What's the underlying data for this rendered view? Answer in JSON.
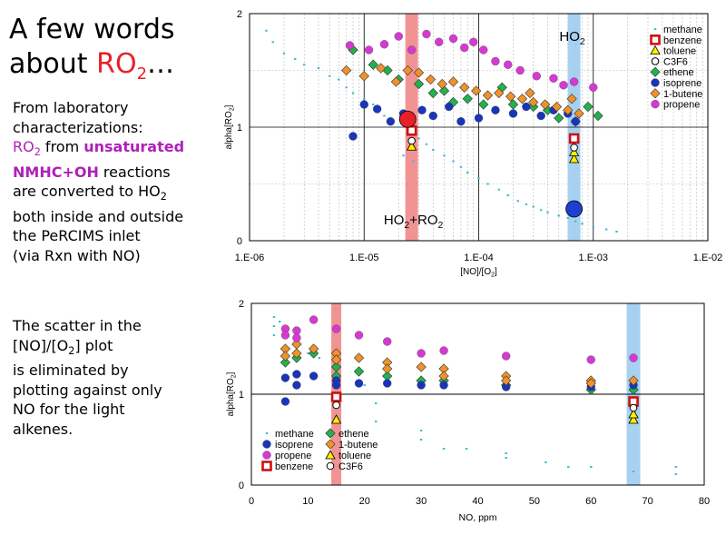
{
  "left_text": {
    "title_line1": "A few words",
    "title_line2_prefix": "about ",
    "title_ro": "RO",
    "title_sub": "2",
    "title_suffix": "…",
    "p1_line1": "From laboratory",
    "p1_line2": "characterizations:",
    "p1_ro": "RO",
    "p1_ro_sub": "2",
    "p1_from": " from ",
    "p1_unsat": "unsaturated",
    "p1_nmhc": "NMHC+OH",
    "p1_reactions": " reactions",
    "p1_conv": "are converted to HO",
    "p1_conv_sub": "2",
    "p1_line6": "both inside and outside",
    "p1_line7": "the PeRCIMS inlet",
    "p1_line8": "(via  Rxn with NO)",
    "p2_line1": "The scatter in the",
    "p2_line2a": "[NO]/[O",
    "p2_line2sub": "2",
    "p2_line2b": "] plot",
    "p2_line3": "is eliminated by",
    "p2_line4": "plotting against only",
    "p2_line5": "NO for the light",
    "p2_line6": "alkenes."
  },
  "chart_data": [
    {
      "type": "scatter",
      "xlabel": "[NO]/[O2]",
      "ylabel": "alpha[RO2]",
      "xscale": "log",
      "xlim": [
        1e-06,
        0.01
      ],
      "ylim": [
        0,
        2
      ],
      "x_tick_labels": [
        "1.E-06",
        "1.E-05",
        "1.E-04",
        "1.E-03",
        "1.E-02"
      ],
      "y_tick_labels": [
        "0",
        "1",
        "2"
      ],
      "grid": "minor dashed, major solid",
      "legend_position": "right",
      "bands": [
        {
          "label": "HO2+RO2",
          "x": 2.6e-05,
          "color": "#f08080"
        },
        {
          "label": "HO2",
          "x": 0.00068,
          "color": "#99c9ef"
        }
      ],
      "marker_points": [
        {
          "x": 2.4e-05,
          "y": 1.07,
          "color": "#e8202a",
          "meaning": "HO2+RO2"
        },
        {
          "x": 0.00068,
          "y": 0.28,
          "color": "#1e3fd0",
          "meaning": "HO2"
        }
      ],
      "series": [
        {
          "name": "methane",
          "marker": "dash",
          "color": "#42b8d8",
          "points": [
            [
              1.4e-06,
              1.85
            ],
            [
              1.6e-06,
              1.75
            ],
            [
              2e-06,
              1.65
            ],
            [
              2.5e-06,
              1.6
            ],
            [
              3e-06,
              1.55
            ],
            [
              4e-06,
              1.52
            ],
            [
              5e-06,
              1.45
            ],
            [
              6e-06,
              1.42
            ],
            [
              7e-06,
              1.35
            ],
            [
              8e-06,
              1.3
            ],
            [
              1e-05,
              1.25
            ],
            [
              1.2e-05,
              1.2
            ],
            [
              1.5e-05,
              1.1
            ],
            [
              1.8e-05,
              1.05
            ],
            [
              2e-05,
              1.0
            ],
            [
              2.5e-05,
              0.95
            ],
            [
              3e-05,
              0.9
            ],
            [
              3.5e-05,
              0.85
            ],
            [
              4e-05,
              0.8
            ],
            [
              5e-05,
              0.75
            ],
            [
              6e-05,
              0.7
            ],
            [
              7e-05,
              0.65
            ],
            [
              8e-05,
              0.6
            ],
            [
              0.0001,
              0.55
            ],
            [
              0.00012,
              0.5
            ],
            [
              0.00015,
              0.45
            ],
            [
              0.00018,
              0.4
            ],
            [
              0.00022,
              0.35
            ],
            [
              0.00026,
              0.32
            ],
            [
              0.0003,
              0.3
            ],
            [
              0.00035,
              0.27
            ],
            [
              0.0004,
              0.25
            ],
            [
              0.0005,
              0.22
            ],
            [
              0.0006,
              0.2
            ],
            [
              0.0007,
              0.17
            ],
            [
              0.0008,
              0.15
            ],
            [
              0.001,
              0.12
            ],
            [
              0.0013,
              0.1
            ],
            [
              0.0016,
              0.08
            ],
            [
              2.2e-05,
              0.75
            ],
            [
              2.7e-05,
              0.7
            ]
          ]
        },
        {
          "name": "benzene",
          "marker": "square",
          "color": "#cc1111",
          "points": [
            [
              2.6e-05,
              0.97
            ],
            [
              0.00068,
              0.9
            ]
          ]
        },
        {
          "name": "toluene",
          "marker": "triangle",
          "color": "#ffee00",
          "points": [
            [
              2.6e-05,
              0.83
            ],
            [
              0.00068,
              0.72
            ],
            [
              0.00068,
              0.78
            ]
          ]
        },
        {
          "name": "C3F6",
          "marker": "circle-open",
          "color": "#ffffff",
          "points": [
            [
              2.6e-05,
              0.88
            ],
            [
              0.00068,
              0.82
            ]
          ]
        },
        {
          "name": "ethene",
          "marker": "diamond",
          "color": "#22b24c",
          "points": [
            [
              8e-06,
              1.68
            ],
            [
              1.2e-05,
              1.55
            ],
            [
              1.6e-05,
              1.5
            ],
            [
              2e-05,
              1.42
            ],
            [
              3e-05,
              1.38
            ],
            [
              4e-05,
              1.3
            ],
            [
              5e-05,
              1.32
            ],
            [
              6e-05,
              1.22
            ],
            [
              8e-05,
              1.25
            ],
            [
              0.00011,
              1.2
            ],
            [
              0.00016,
              1.35
            ],
            [
              0.0002,
              1.2
            ],
            [
              0.0003,
              1.18
            ],
            [
              0.0004,
              1.15
            ],
            [
              0.0005,
              1.08
            ],
            [
              0.0007,
              1.05
            ],
            [
              0.0011,
              1.1
            ],
            [
              0.0009,
              1.18
            ]
          ]
        },
        {
          "name": "isoprene",
          "marker": "circle",
          "color": "#1a35b8",
          "points": [
            [
              8e-06,
              0.92
            ],
            [
              1e-05,
              1.2
            ],
            [
              1.3e-05,
              1.16
            ],
            [
              1.7e-05,
              1.05
            ],
            [
              2.2e-05,
              1.12
            ],
            [
              3.2e-05,
              1.15
            ],
            [
              4e-05,
              1.1
            ],
            [
              5.5e-05,
              1.18
            ],
            [
              7e-05,
              1.05
            ],
            [
              0.0001,
              1.08
            ],
            [
              0.00014,
              1.15
            ],
            [
              0.0002,
              1.12
            ],
            [
              0.00026,
              1.18
            ],
            [
              0.00035,
              1.1
            ],
            [
              0.00045,
              1.15
            ],
            [
              0.0006,
              1.12
            ],
            [
              0.0007,
              1.05
            ]
          ]
        },
        {
          "name": "1-butene",
          "marker": "diamond",
          "color": "#f0922a",
          "points": [
            [
              7e-06,
              1.5
            ],
            [
              1e-05,
              1.45
            ],
            [
              1.4e-05,
              1.52
            ],
            [
              1.9e-05,
              1.4
            ],
            [
              2.4e-05,
              1.5
            ],
            [
              3e-05,
              1.48
            ],
            [
              3.8e-05,
              1.42
            ],
            [
              4.8e-05,
              1.38
            ],
            [
              6e-05,
              1.4
            ],
            [
              7.5e-05,
              1.35
            ],
            [
              9.5e-05,
              1.32
            ],
            [
              0.00012,
              1.28
            ],
            [
              0.00015,
              1.3
            ],
            [
              0.00019,
              1.27
            ],
            [
              0.00024,
              1.25
            ],
            [
              0.0003,
              1.22
            ],
            [
              0.00038,
              1.2
            ],
            [
              0.00048,
              1.18
            ],
            [
              0.0006,
              1.15
            ],
            [
              0.00075,
              1.12
            ],
            [
              0.00065,
              1.25
            ],
            [
              0.00028,
              1.3
            ]
          ]
        },
        {
          "name": "propene",
          "marker": "circle",
          "color": "#d43ad0",
          "points": [
            [
              7.5e-06,
              1.72
            ],
            [
              1.1e-05,
              1.68
            ],
            [
              1.5e-05,
              1.73
            ],
            [
              2e-05,
              1.8
            ],
            [
              2.6e-05,
              1.68
            ],
            [
              3.5e-05,
              1.82
            ],
            [
              4.5e-05,
              1.75
            ],
            [
              6e-05,
              1.78
            ],
            [
              7.5e-05,
              1.7
            ],
            [
              9e-05,
              1.75
            ],
            [
              0.00011,
              1.68
            ],
            [
              0.00014,
              1.58
            ],
            [
              0.00018,
              1.55
            ],
            [
              0.00023,
              1.5
            ],
            [
              0.00032,
              1.45
            ],
            [
              0.00045,
              1.43
            ],
            [
              0.00055,
              1.37
            ],
            [
              0.00068,
              1.4
            ],
            [
              0.001,
              1.35
            ]
          ]
        }
      ]
    },
    {
      "type": "scatter",
      "xlabel": "NO, ppm",
      "ylabel": "alpha[RO2]",
      "xlim": [
        0,
        80
      ],
      "ylim": [
        0,
        2
      ],
      "x_tick_labels": [
        "0",
        "10",
        "20",
        "30",
        "40",
        "50",
        "60",
        "70",
        "80"
      ],
      "y_tick_labels": [
        "0",
        "1",
        "2"
      ],
      "grid": "y=1 line",
      "legend_position": "bottom-left",
      "bands": [
        {
          "x": 15,
          "color": "#f08080"
        },
        {
          "x": 67.5,
          "color": "#99c9ef"
        }
      ],
      "series": [
        {
          "name": "methane",
          "marker": "dash",
          "color": "#42b8d8",
          "points": [
            [
              4,
              1.85
            ],
            [
              4,
              1.75
            ],
            [
              4,
              1.65
            ],
            [
              5,
              1.8
            ],
            [
              6,
              1.7
            ],
            [
              8,
              1.55
            ],
            [
              10,
              1.45
            ],
            [
              12,
              1.4
            ],
            [
              15,
              1.3
            ],
            [
              15,
              1.2
            ],
            [
              20,
              1.1
            ],
            [
              22,
              0.9
            ],
            [
              22,
              0.7
            ],
            [
              30,
              0.6
            ],
            [
              30,
              0.5
            ],
            [
              34,
              0.4
            ],
            [
              38,
              0.4
            ],
            [
              45,
              0.35
            ],
            [
              45,
              0.3
            ],
            [
              52,
              0.25
            ],
            [
              56,
              0.2
            ],
            [
              60,
              0.2
            ],
            [
              67.5,
              0.15
            ],
            [
              75,
              0.2
            ],
            [
              75,
              0.12
            ]
          ]
        },
        {
          "name": "ethene",
          "marker": "diamond",
          "color": "#22b24c",
          "points": [
            [
              6,
              1.35
            ],
            [
              8,
              1.4
            ],
            [
              11,
              1.45
            ],
            [
              15,
              1.3
            ],
            [
              15,
              1.2
            ],
            [
              19,
              1.25
            ],
            [
              24,
              1.2
            ],
            [
              30,
              1.15
            ],
            [
              34,
              1.15
            ],
            [
              45,
              1.1
            ],
            [
              60,
              1.05
            ],
            [
              67.5,
              1.05
            ]
          ]
        },
        {
          "name": "isoprene",
          "marker": "circle",
          "color": "#1a35b8",
          "points": [
            [
              6,
              0.92
            ],
            [
              6,
              1.18
            ],
            [
              8,
              1.1
            ],
            [
              8,
              1.22
            ],
            [
              11,
              1.2
            ],
            [
              15,
              1.1
            ],
            [
              15,
              1.15
            ],
            [
              19,
              1.12
            ],
            [
              24,
              1.12
            ],
            [
              30,
              1.1
            ],
            [
              34,
              1.1
            ],
            [
              45,
              1.08
            ],
            [
              60,
              1.08
            ],
            [
              67.5,
              1.1
            ]
          ]
        },
        {
          "name": "1-butene",
          "marker": "diamond",
          "color": "#f0922a",
          "points": [
            [
              6,
              1.5
            ],
            [
              6,
              1.42
            ],
            [
              8,
              1.45
            ],
            [
              8,
              1.55
            ],
            [
              11,
              1.5
            ],
            [
              15,
              1.45
            ],
            [
              15,
              1.38
            ],
            [
              19,
              1.4
            ],
            [
              24,
              1.35
            ],
            [
              24,
              1.28
            ],
            [
              30,
              1.3
            ],
            [
              34,
              1.28
            ],
            [
              34,
              1.2
            ],
            [
              45,
              1.2
            ],
            [
              45,
              1.15
            ],
            [
              60,
              1.15
            ],
            [
              60,
              1.12
            ],
            [
              67.5,
              1.15
            ]
          ]
        },
        {
          "name": "propene",
          "marker": "circle",
          "color": "#d43ad0",
          "points": [
            [
              6,
              1.72
            ],
            [
              6,
              1.65
            ],
            [
              8,
              1.7
            ],
            [
              8,
              1.62
            ],
            [
              11,
              1.82
            ],
            [
              15,
              1.72
            ],
            [
              19,
              1.65
            ],
            [
              24,
              1.58
            ],
            [
              30,
              1.45
            ],
            [
              34,
              1.48
            ],
            [
              45,
              1.42
            ],
            [
              60,
              1.38
            ],
            [
              67.5,
              1.4
            ]
          ]
        },
        {
          "name": "toluene",
          "marker": "triangle",
          "color": "#ffee00",
          "points": [
            [
              15,
              0.72
            ],
            [
              67.5,
              0.72
            ],
            [
              67.5,
              0.78
            ]
          ]
        },
        {
          "name": "benzene",
          "marker": "square",
          "color": "#cc1111",
          "points": [
            [
              15,
              0.97
            ],
            [
              67.5,
              0.92
            ]
          ]
        },
        {
          "name": "C3F6",
          "marker": "circle-open",
          "color": "#ffffff",
          "points": [
            [
              15,
              0.88
            ],
            [
              67.5,
              0.85
            ]
          ]
        }
      ]
    }
  ]
}
